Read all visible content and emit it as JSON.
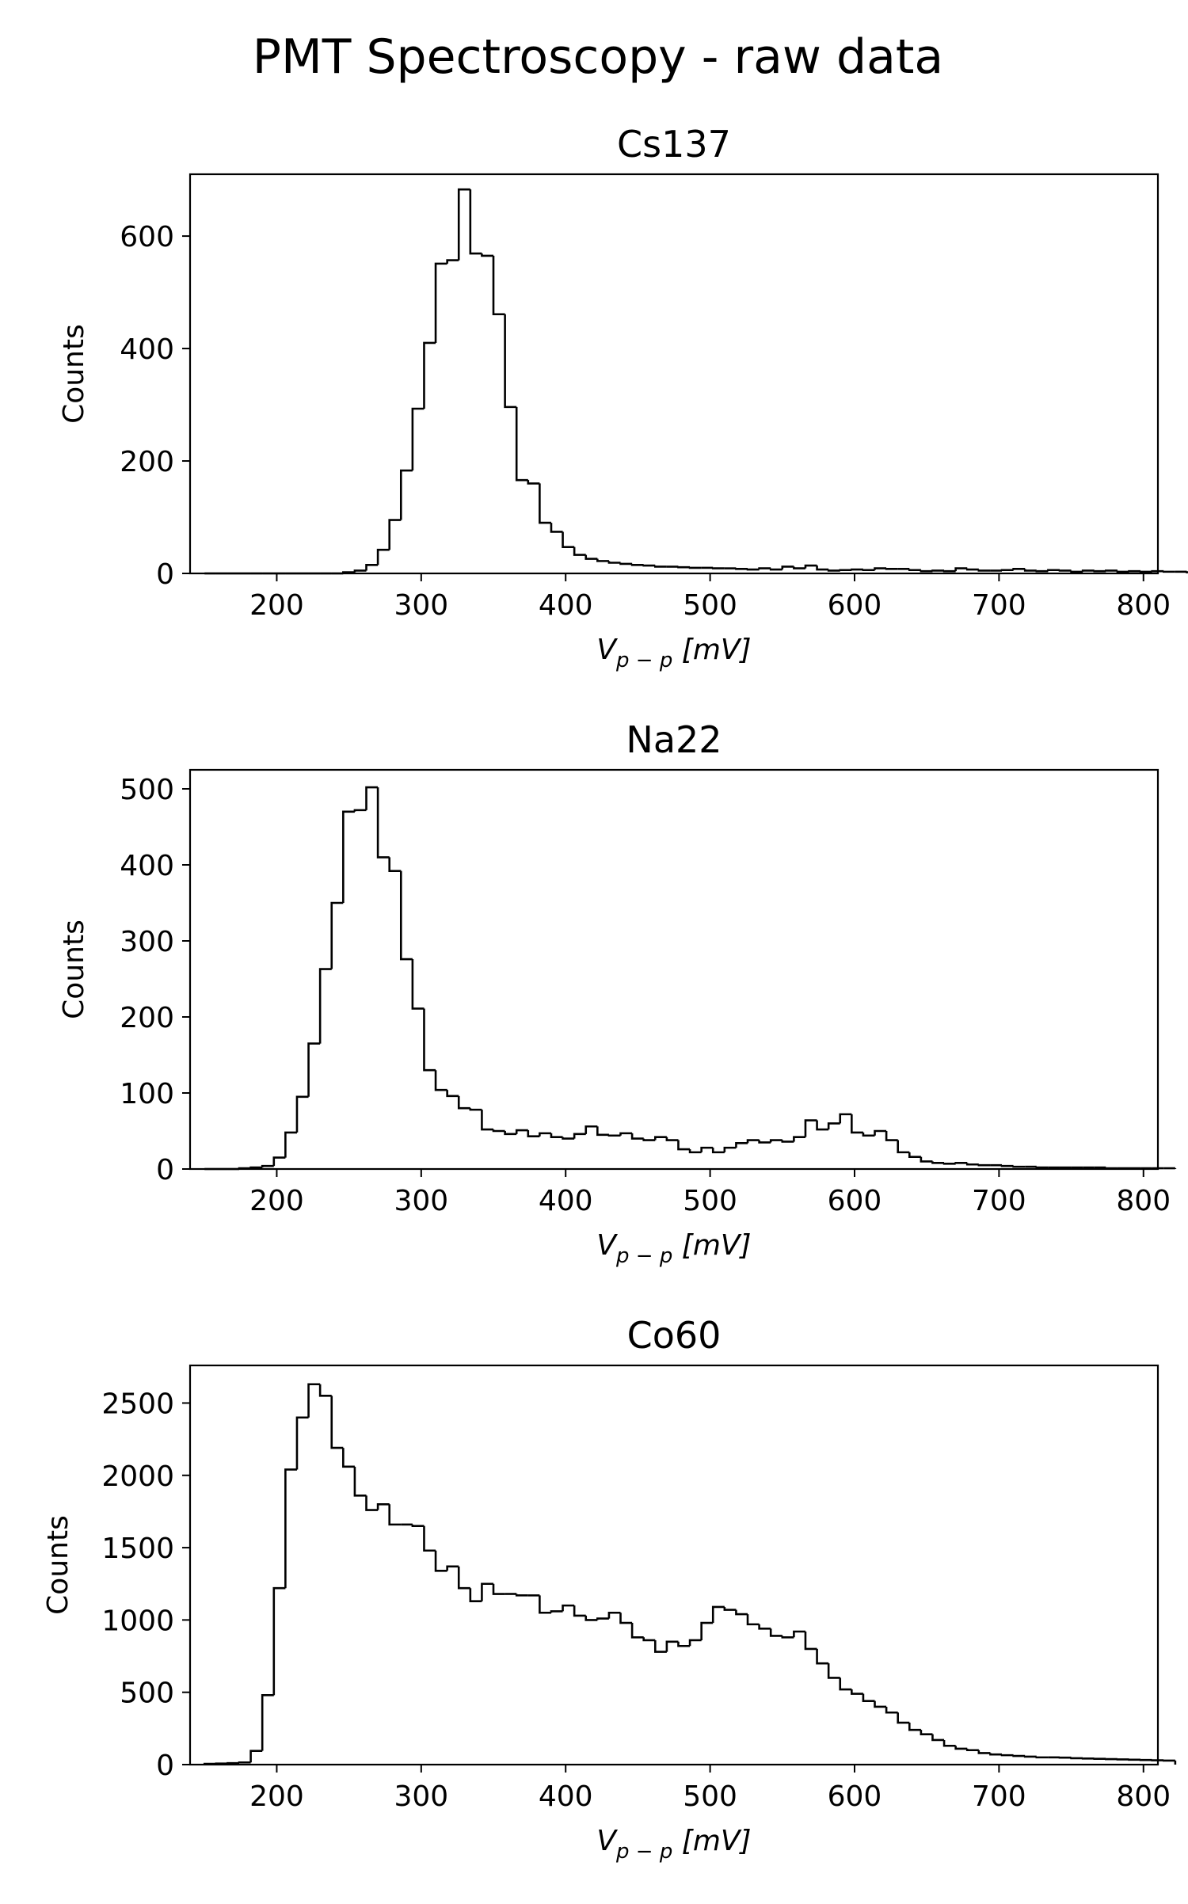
{
  "figure": {
    "suptitle": "PMT Spectroscopy - raw data",
    "line_color": "#000000",
    "background": "#ffffff"
  },
  "chart_data": [
    {
      "type": "histogram",
      "title": "Cs137",
      "xlabel": "V_{p-p} [mV]",
      "xlabel_main": "V",
      "xlabel_sub": "p − p",
      "xlabel_unit": "[mV]",
      "ylabel": "Counts",
      "xlim": [
        140,
        810
      ],
      "ylim": [
        0,
        710
      ],
      "xticks": [
        200,
        300,
        400,
        500,
        600,
        700,
        800
      ],
      "yticks": [
        0,
        200,
        400,
        600
      ],
      "grid": false,
      "legend": "none",
      "bin_start": 150,
      "bin_width": 8,
      "values": [
        0,
        0,
        0,
        0,
        0,
        0,
        0,
        0,
        0,
        0,
        0,
        0,
        2,
        5,
        15,
        42,
        95,
        183,
        293,
        410,
        551,
        557,
        683,
        569,
        565,
        461,
        296,
        166,
        160,
        90,
        74,
        47,
        33,
        26,
        22,
        19,
        17,
        15,
        14,
        12,
        12,
        11,
        10,
        10,
        9,
        9,
        8,
        7,
        9,
        7,
        12,
        9,
        14,
        7,
        5,
        6,
        7,
        6,
        9,
        8,
        8,
        6,
        4,
        5,
        4,
        9,
        7,
        5,
        5,
        6,
        8,
        5,
        4,
        6,
        5,
        3,
        5,
        4,
        5,
        3,
        4,
        3,
        4,
        3,
        3,
        2
      ]
    },
    {
      "type": "histogram",
      "title": "Na22",
      "xlabel": "V_{p-p} [mV]",
      "xlabel_main": "V",
      "xlabel_sub": "p − p",
      "xlabel_unit": "[mV]",
      "ylabel": "Counts",
      "xlim": [
        140,
        810
      ],
      "ylim": [
        0,
        525
      ],
      "xticks": [
        200,
        300,
        400,
        500,
        600,
        700,
        800
      ],
      "yticks": [
        0,
        100,
        200,
        300,
        400,
        500
      ],
      "grid": false,
      "legend": "none",
      "bin_start": 150,
      "bin_width": 8,
      "values": [
        0,
        0,
        0,
        1,
        2,
        4,
        15,
        48,
        95,
        165,
        263,
        350,
        470,
        472,
        502,
        410,
        392,
        276,
        211,
        130,
        104,
        96,
        80,
        78,
        52,
        50,
        46,
        51,
        43,
        47,
        42,
        40,
        46,
        56,
        45,
        44,
        47,
        40,
        38,
        42,
        38,
        26,
        22,
        28,
        22,
        28,
        34,
        38,
        35,
        38,
        36,
        42,
        64,
        52,
        60,
        72,
        48,
        44,
        50,
        38,
        22,
        16,
        10,
        8,
        7,
        8,
        6,
        5,
        5,
        4,
        3,
        3,
        2,
        2,
        2,
        2,
        2,
        2,
        1,
        1,
        1,
        1,
        1,
        1
      ]
    },
    {
      "type": "histogram",
      "title": "Co60",
      "xlabel": "V_{p-p} [mV]",
      "xlabel_main": "V",
      "xlabel_sub": "p − p",
      "xlabel_unit": "[mV]",
      "ylabel": "Counts",
      "xlim": [
        140,
        810
      ],
      "ylim": [
        0,
        2760
      ],
      "xticks": [
        200,
        300,
        400,
        500,
        600,
        700,
        800
      ],
      "yticks": [
        0,
        500,
        1000,
        1500,
        2000,
        2500
      ],
      "grid": false,
      "legend": "none",
      "bin_start": 150,
      "bin_width": 8,
      "values": [
        5,
        7,
        10,
        15,
        95,
        480,
        1220,
        2040,
        2400,
        2630,
        2550,
        2190,
        2060,
        1860,
        1760,
        1800,
        1660,
        1660,
        1650,
        1480,
        1340,
        1370,
        1220,
        1130,
        1250,
        1180,
        1180,
        1170,
        1170,
        1050,
        1060,
        1100,
        1030,
        1000,
        1010,
        1050,
        980,
        880,
        860,
        780,
        850,
        820,
        860,
        980,
        1090,
        1070,
        1040,
        970,
        940,
        890,
        880,
        920,
        800,
        700,
        600,
        520,
        490,
        440,
        400,
        360,
        290,
        240,
        210,
        170,
        130,
        110,
        100,
        80,
        70,
        65,
        60,
        55,
        50,
        50,
        48,
        44,
        42,
        40,
        38,
        36,
        34,
        32,
        30,
        28
      ]
    }
  ]
}
